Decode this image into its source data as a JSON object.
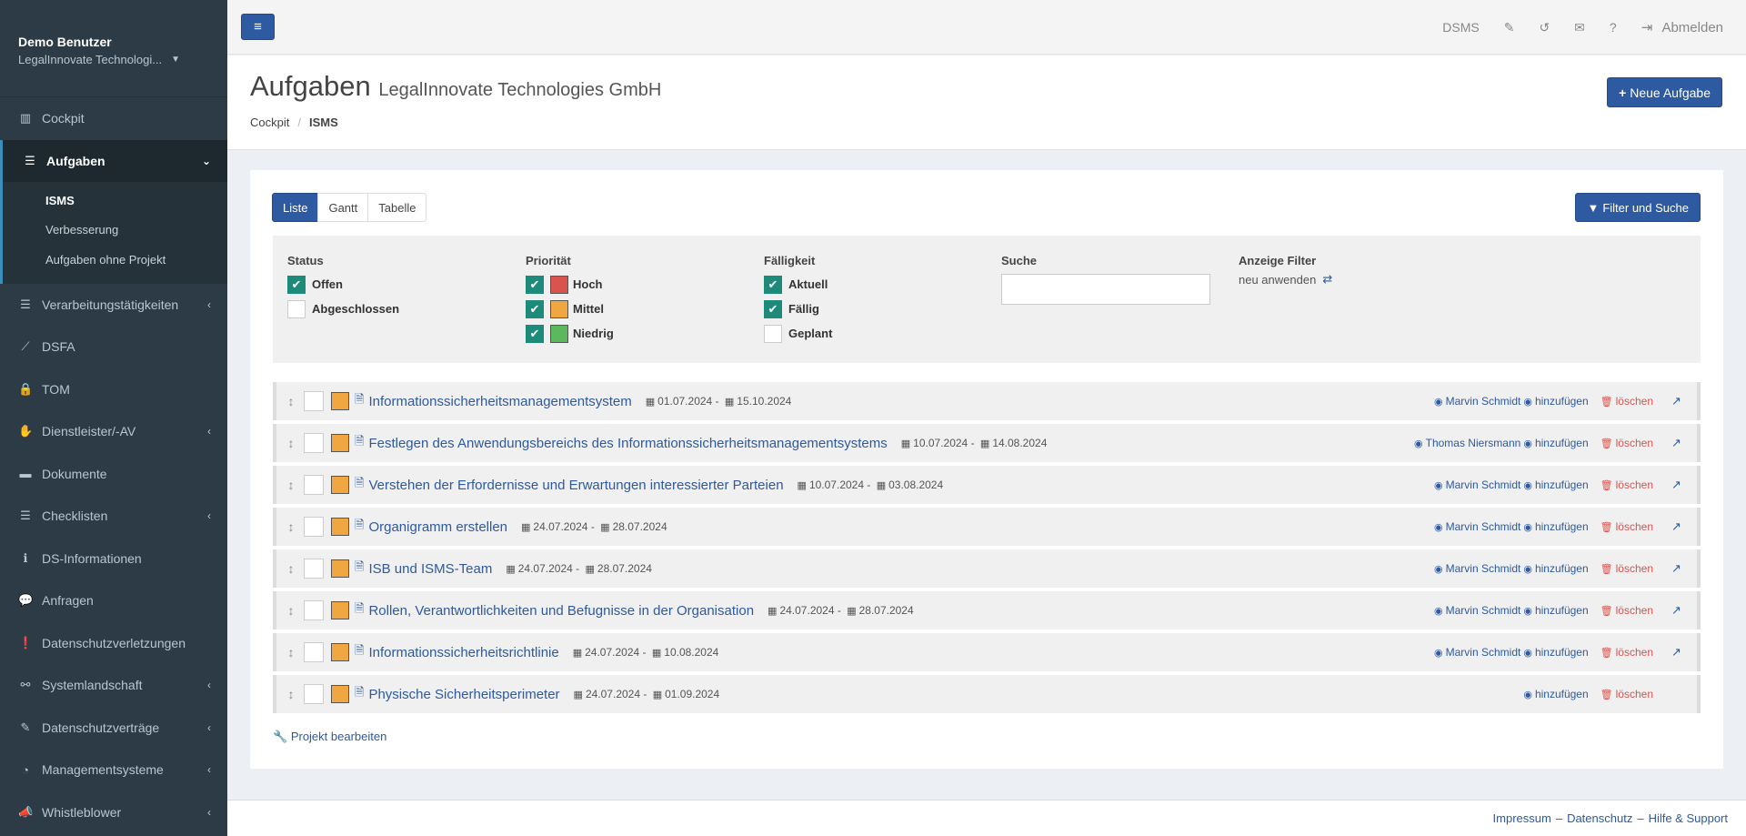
{
  "sidebar": {
    "user_name": "Demo Benutzer",
    "user_company": "LegalInnovate Technologi...",
    "menu": [
      {
        "label": "Cockpit",
        "icon": "bar-chart-icon",
        "glyph": "▥",
        "has_children": false
      },
      {
        "label": "Aufgaben",
        "icon": "tasks-icon",
        "glyph": "☰",
        "has_children": true,
        "open": true
      },
      {
        "label": "Verarbeitungstätigkeiten",
        "icon": "list-icon",
        "glyph": "☰",
        "has_children": true
      },
      {
        "label": "DSFA",
        "icon": "line-chart-icon",
        "glyph": "⟋",
        "has_children": false
      },
      {
        "label": "TOM",
        "icon": "lock-icon",
        "glyph": "🔒",
        "has_children": false
      },
      {
        "label": "Dienstleister/-AV",
        "icon": "handshake-icon",
        "glyph": "✋",
        "has_children": true
      },
      {
        "label": "Dokumente",
        "icon": "folder-icon",
        "glyph": "▬",
        "has_children": false
      },
      {
        "label": "Checklisten",
        "icon": "checklist-icon",
        "glyph": "☰",
        "has_children": true
      },
      {
        "label": "DS-Informationen",
        "icon": "info-icon",
        "glyph": "ℹ",
        "has_children": false
      },
      {
        "label": "Anfragen",
        "icon": "comments-icon",
        "glyph": "💬",
        "has_children": false
      },
      {
        "label": "Datenschutzverletzungen",
        "icon": "exclamation-icon",
        "glyph": "❗",
        "has_children": false
      },
      {
        "label": "Systemlandschaft",
        "icon": "network-icon",
        "glyph": "⚯",
        "has_children": true
      },
      {
        "label": "Datenschutzverträge",
        "icon": "contract-icon",
        "glyph": "✎",
        "has_children": true
      },
      {
        "label": "Managementsysteme",
        "icon": "dashboard-icon",
        "glyph": "◔",
        "has_children": true
      },
      {
        "label": "Whistleblower",
        "icon": "megaphone-icon",
        "glyph": "📣",
        "has_children": true
      }
    ],
    "submenu": [
      {
        "label": "ISMS",
        "current": true
      },
      {
        "label": "Verbesserung",
        "current": false
      },
      {
        "label": "Aufgaben ohne Projekt",
        "current": false
      }
    ]
  },
  "topbar": {
    "dsms": "DSMS",
    "logout": "Abmelden"
  },
  "header": {
    "title": "Aufgaben",
    "subtitle": "LegalInnovate Technologies GmbH",
    "new_task": "Neue Aufgabe",
    "breadcrumb": [
      "Cockpit",
      "ISMS"
    ]
  },
  "views": {
    "tabs": [
      "Liste",
      "Gantt",
      "Tabelle"
    ],
    "active": "Liste",
    "filter_button": "Filter und Suche"
  },
  "filters": {
    "status": {
      "label": "Status",
      "options": [
        {
          "label": "Offen",
          "checked": true
        },
        {
          "label": "Abgeschlossen",
          "checked": false
        }
      ]
    },
    "priority": {
      "label": "Priorität",
      "options": [
        {
          "label": "Hoch",
          "checked": true,
          "color": "#d9534f"
        },
        {
          "label": "Mittel",
          "checked": true,
          "color": "#f0a742"
        },
        {
          "label": "Niedrig",
          "checked": true,
          "color": "#5cb85c"
        }
      ]
    },
    "due": {
      "label": "Fälligkeit",
      "options": [
        {
          "label": "Aktuell",
          "checked": true
        },
        {
          "label": "Fällig",
          "checked": true
        },
        {
          "label": "Geplant",
          "checked": false
        }
      ]
    },
    "search": {
      "label": "Suche",
      "value": ""
    },
    "display": {
      "label": "Anzeige Filter",
      "reapply": "neu anwenden"
    }
  },
  "tasks": [
    {
      "title": "Informationssicherheitsmanagementsystem",
      "start": "01.07.2024",
      "end": "15.10.2024",
      "assignee": "Marvin Schmidt"
    },
    {
      "title": "Festlegen des Anwendungsbereichs des Informationssicherheitsmanagementsystems",
      "start": "10.07.2024",
      "end": "14.08.2024",
      "assignee": "Thomas Niersmann"
    },
    {
      "title": "Verstehen der Erfordernisse und Erwartungen interessierter Parteien",
      "start": "10.07.2024",
      "end": "03.08.2024",
      "assignee": "Marvin Schmidt"
    },
    {
      "title": "Organigramm erstellen",
      "start": "24.07.2024",
      "end": "28.07.2024",
      "assignee": "Marvin Schmidt"
    },
    {
      "title": "ISB und ISMS-Team",
      "start": "24.07.2024",
      "end": "28.07.2024",
      "assignee": "Marvin Schmidt"
    },
    {
      "title": "Rollen, Verantwortlichkeiten und Befugnisse in der Organisation",
      "start": "24.07.2024",
      "end": "28.07.2024",
      "assignee": "Marvin Schmidt"
    },
    {
      "title": "Informationssicherheitsrichtlinie",
      "start": "24.07.2024",
      "end": "10.08.2024",
      "assignee": "Marvin Schmidt"
    },
    {
      "title": "Physische Sicherheitsperimeter",
      "start": "24.07.2024",
      "end": "01.09.2024",
      "assignee": ""
    }
  ],
  "task_actions": {
    "add": "hinzufügen",
    "delete": "löschen"
  },
  "edit_project": "Projekt bearbeiten",
  "footer": [
    "Impressum",
    "Datenschutz",
    "Hilfe & Support"
  ],
  "colors": {
    "primary": "#2d5aa0",
    "sidebar": "#2c3b46",
    "check": "#1e8a7a",
    "danger": "#d9534f"
  }
}
